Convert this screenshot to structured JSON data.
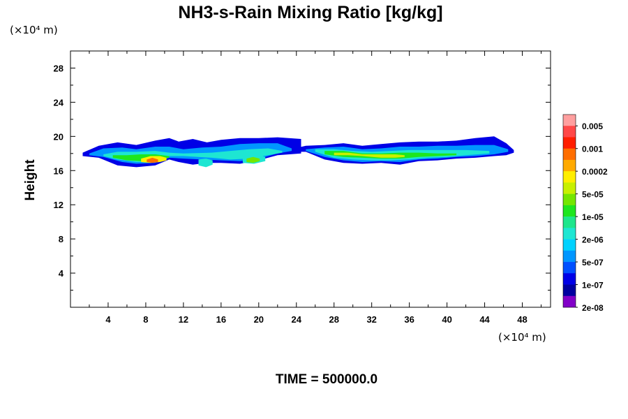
{
  "chart_data": {
    "type": "heatmap",
    "title": "NH3-s-Rain Mixing Ratio [kg/kg]",
    "ylabel": "Height",
    "x_unit": "(×10⁴ m)",
    "y_unit": "(×10⁴ m)",
    "footer": "TIME = 500000.0",
    "xlim": [
      0,
      51
    ],
    "ylim": [
      0,
      30
    ],
    "x_ticks": [
      4,
      8,
      12,
      16,
      20,
      24,
      28,
      32,
      36,
      40,
      44,
      48
    ],
    "y_ticks": [
      4,
      8,
      12,
      16,
      20,
      24,
      28
    ],
    "colorbar": {
      "labels": [
        "0.005",
        "0.001",
        "0.0002",
        "5e-05",
        "1e-05",
        "2e-06",
        "5e-07",
        "1e-07",
        "2e-08"
      ],
      "colors": [
        "#ff9f9f",
        "#ff4848",
        "#ff1e00",
        "#ff6e00",
        "#ffaa00",
        "#ffee00",
        "#c8f000",
        "#74e600",
        "#1ee61e",
        "#1ee68c",
        "#1ee6d2",
        "#00d2ff",
        "#0096ff",
        "#0050ff",
        "#0000e6",
        "#0000a0",
        "#8200c8"
      ]
    },
    "bands": [
      {
        "name": "blob-1",
        "x": [
          1.3,
          3,
          5,
          7,
          9,
          10.5,
          11.5,
          13,
          14.5,
          16,
          18,
          20,
          22,
          24.5
        ],
        "top": [
          18.1,
          18.9,
          19.3,
          19.0,
          19.5,
          19.8,
          19.4,
          19.7,
          19.3,
          19.6,
          19.8,
          19.8,
          19.9,
          19.7
        ],
        "bottom": [
          17.7,
          17.5,
          16.6,
          16.4,
          16.6,
          17.3,
          17.0,
          16.7,
          16.9,
          16.9,
          16.8,
          17.2,
          17.8,
          18.0
        ],
        "level": 14
      },
      {
        "name": "blob-1-inner",
        "x": [
          2,
          3.5,
          5.5,
          7,
          9,
          10.5,
          12,
          14,
          16,
          18,
          20,
          22,
          23.5
        ],
        "top": [
          18.0,
          18.6,
          18.7,
          18.5,
          18.8,
          18.8,
          18.5,
          18.7,
          18.8,
          19.1,
          19.2,
          19.2,
          18.6
        ],
        "bottom": [
          17.8,
          17.6,
          17.0,
          16.8,
          16.9,
          17.5,
          17.4,
          17.3,
          17.2,
          17.1,
          17.4,
          18.0,
          18.3
        ],
        "level": 12
      },
      {
        "name": "blob-1-teal",
        "x": [
          3.5,
          5,
          7,
          9,
          10.5,
          12,
          15,
          17,
          19,
          21,
          22.5
        ],
        "top": [
          17.9,
          18.2,
          18.2,
          18.3,
          18.1,
          18.0,
          18.1,
          18.3,
          18.5,
          18.6,
          18.3
        ],
        "bottom": [
          17.7,
          17.3,
          17.0,
          17.0,
          17.7,
          17.7,
          17.5,
          17.3,
          17.4,
          17.8,
          18.1
        ],
        "level": 10
      },
      {
        "name": "blob-1-green",
        "x": [
          4.5,
          6,
          7.5,
          9,
          10.5
        ],
        "top": [
          17.8,
          17.8,
          17.9,
          17.9,
          17.7
        ],
        "bottom": [
          17.5,
          17.2,
          17.1,
          17.2,
          17.5
        ],
        "level": 8
      },
      {
        "name": "blob-1-yellow",
        "x": [
          7.5,
          8.5,
          9.5,
          10.2
        ],
        "top": [
          17.4,
          17.7,
          17.7,
          17.5
        ],
        "bottom": [
          17.0,
          16.9,
          17.0,
          17.2
        ],
        "level": 5
      },
      {
        "name": "blob-1-orange",
        "x": [
          8.1,
          8.7,
          9.3
        ],
        "top": [
          17.3,
          17.5,
          17.3
        ],
        "bottom": [
          17.0,
          16.9,
          17.0
        ],
        "level": 3
      },
      {
        "name": "blob-2",
        "x": [
          23.8,
          25,
          27,
          29,
          31,
          33,
          35,
          37,
          39,
          41,
          43,
          45,
          46.3,
          47.1
        ],
        "top": [
          18.6,
          18.9,
          19.0,
          19.2,
          18.9,
          19.1,
          19.3,
          19.4,
          19.4,
          19.5,
          19.8,
          20.0,
          19.2,
          18.4
        ],
        "bottom": [
          18.2,
          18.2,
          17.3,
          16.9,
          16.8,
          16.9,
          16.7,
          17.1,
          17.2,
          17.4,
          17.5,
          17.7,
          17.8,
          18.1
        ],
        "level": 14
      },
      {
        "name": "blob-2-inner",
        "x": [
          25,
          27,
          29,
          31,
          33,
          35,
          37,
          39,
          41,
          43,
          45,
          46.5
        ],
        "top": [
          18.5,
          18.7,
          18.8,
          18.5,
          18.6,
          18.8,
          18.8,
          18.9,
          18.9,
          19.0,
          19.0,
          18.5
        ],
        "bottom": [
          18.3,
          17.6,
          17.2,
          17.0,
          17.1,
          17.0,
          17.3,
          17.4,
          17.6,
          17.7,
          17.9,
          18.2
        ],
        "level": 12
      },
      {
        "name": "blob-2-teal",
        "x": [
          26,
          28,
          30,
          32,
          34,
          36,
          38,
          40,
          42,
          44.5
        ],
        "top": [
          18.5,
          18.5,
          18.3,
          18.2,
          18.3,
          18.4,
          18.4,
          18.4,
          18.4,
          18.3
        ],
        "bottom": [
          18.2,
          17.5,
          17.3,
          17.2,
          17.2,
          17.3,
          17.5,
          17.6,
          17.8,
          18.0
        ],
        "level": 10
      },
      {
        "name": "blob-2-green",
        "x": [
          27,
          29,
          31,
          33,
          35,
          37,
          39,
          41
        ],
        "top": [
          18.3,
          18.3,
          18.0,
          18.0,
          18.1,
          18.1,
          18.0,
          18.0
        ],
        "bottom": [
          17.9,
          17.6,
          17.5,
          17.4,
          17.4,
          17.6,
          17.7,
          17.8
        ],
        "level": 8
      },
      {
        "name": "blob-2-yellow",
        "x": [
          28,
          29.5,
          31,
          33,
          34.5,
          35.5
        ],
        "top": [
          18.1,
          18.1,
          17.9,
          17.9,
          17.9,
          17.8
        ],
        "bottom": [
          17.8,
          17.8,
          17.7,
          17.5,
          17.5,
          17.6
        ],
        "level": 6
      },
      {
        "name": "blob-3",
        "x": [
          18.3,
          19.5,
          20.7
        ],
        "top": [
          17.6,
          18.0,
          17.6
        ],
        "bottom": [
          16.9,
          16.8,
          17.1
        ],
        "level": 10
      },
      {
        "name": "blob-3-green",
        "x": [
          18.7,
          19.4,
          20.1
        ],
        "top": [
          17.4,
          17.6,
          17.4
        ],
        "bottom": [
          17.0,
          16.9,
          17.1
        ],
        "level": 7
      },
      {
        "name": "blob-4",
        "x": [
          13.6,
          14.4,
          15.1
        ],
        "top": [
          17.3,
          17.4,
          17.2
        ],
        "bottom": [
          16.6,
          16.4,
          16.7
        ],
        "level": 10
      }
    ]
  }
}
